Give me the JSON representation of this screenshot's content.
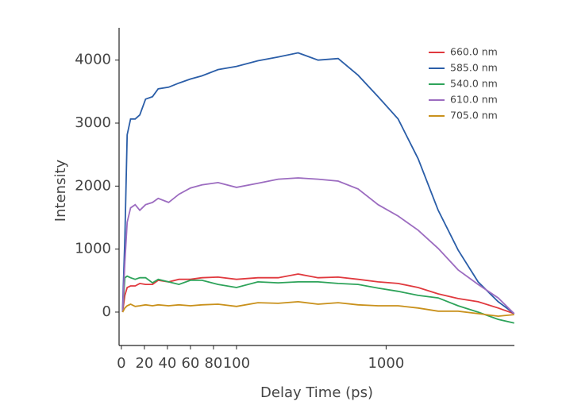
{
  "chart_data": {
    "type": "line",
    "xlabel": "Delay Time (ps)",
    "ylabel": "Intensity",
    "xscale": "linear-log",
    "xlinthresh": 100,
    "xlim": [
      -2,
      7200
    ],
    "xticks": [
      0,
      20,
      40,
      60,
      80,
      100,
      1000
    ],
    "ylim": [
      -530,
      4500
    ],
    "yticks": [
      0,
      1000,
      2000,
      3000,
      4000
    ],
    "legend": "upper right",
    "x": [
      1,
      3,
      5,
      8,
      12,
      16,
      21,
      27,
      32,
      41,
      50,
      60,
      70,
      84,
      100,
      139,
      190,
      258,
      351,
      478,
      650,
      884,
      1203,
      1637,
      2228,
      3028,
      4121,
      5610,
      7173
    ],
    "series": [
      {
        "name": "660.0 nm",
        "color": "#e0393e",
        "values": [
          0,
          265,
          390,
          415,
          415,
          455,
          440,
          440,
          505,
          480,
          520,
          520,
          545,
          555,
          520,
          545,
          545,
          605,
          545,
          555,
          520,
          480,
          455,
          390,
          290,
          215,
          165,
          65,
          -25
        ]
      },
      {
        "name": "585.0 nm",
        "color": "#2b5ea8",
        "values": [
          40,
          1170,
          2815,
          3065,
          3065,
          3130,
          3380,
          3420,
          3545,
          3570,
          3635,
          3700,
          3750,
          3850,
          3900,
          3990,
          4050,
          4115,
          4000,
          4025,
          3760,
          3420,
          3065,
          2435,
          1615,
          985,
          480,
          165,
          -25
        ]
      },
      {
        "name": "540.0 nm",
        "color": "#2ea35a",
        "values": [
          0,
          545,
          570,
          545,
          520,
          545,
          545,
          465,
          520,
          480,
          440,
          505,
          505,
          440,
          390,
          480,
          465,
          480,
          480,
          455,
          440,
          380,
          330,
          265,
          225,
          100,
          0,
          -115,
          -175
        ]
      },
      {
        "name": "610.0 nm",
        "color": "#9c6cc0",
        "values": [
          0,
          795,
          1425,
          1655,
          1705,
          1615,
          1705,
          1740,
          1805,
          1740,
          1870,
          1970,
          2020,
          2055,
          1980,
          2045,
          2110,
          2130,
          2110,
          2080,
          1955,
          1705,
          1525,
          1300,
          1010,
          670,
          440,
          225,
          -25
        ]
      },
      {
        "name": "705.0 nm",
        "color": "#c9911c",
        "values": [
          0,
          65,
          100,
          125,
          90,
          100,
          115,
          100,
          115,
          100,
          115,
          100,
          115,
          125,
          90,
          150,
          140,
          165,
          125,
          150,
          115,
          100,
          100,
          65,
          15,
          15,
          -25,
          -65,
          -40
        ]
      }
    ]
  }
}
